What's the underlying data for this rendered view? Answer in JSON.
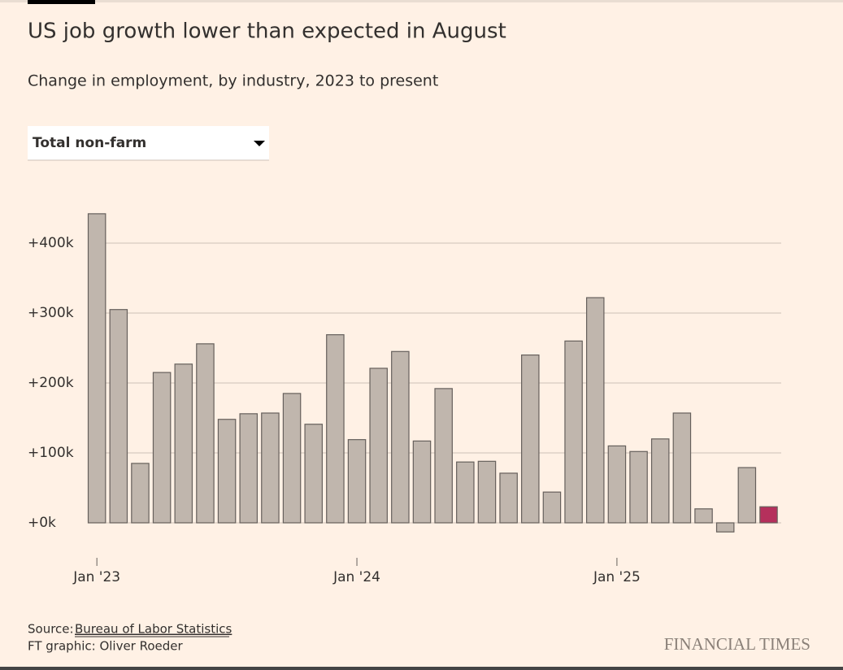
{
  "chart_data": {
    "type": "bar",
    "title": "US job growth lower than expected in August",
    "subtitle": "Change in employment, by industry, 2023 to present",
    "selector": "Total non-farm",
    "source_prefix": "Source:",
    "source": "Bureau of Labor Statistics",
    "credit": "FT graphic: Oliver Roeder",
    "brand": "FINANCIAL TIMES",
    "categories": [
      "Jan '23",
      null,
      null,
      null,
      null,
      null,
      null,
      null,
      null,
      null,
      null,
      null,
      "Jan '24",
      null,
      null,
      null,
      null,
      null,
      null,
      null,
      null,
      null,
      null,
      null,
      "Jan '25",
      null,
      null,
      null,
      null,
      null,
      null,
      null
    ],
    "values": [
      442,
      305,
      85,
      215,
      227,
      256,
      148,
      156,
      157,
      185,
      141,
      269,
      119,
      221,
      245,
      117,
      192,
      87,
      88,
      71,
      240,
      44,
      260,
      322,
      110,
      102,
      120,
      157,
      20,
      -13,
      79,
      23
    ],
    "colors": [
      "#c0b6ad",
      "#c0b6ad",
      "#c0b6ad",
      "#c0b6ad",
      "#c0b6ad",
      "#c0b6ad",
      "#c0b6ad",
      "#c0b6ad",
      "#c0b6ad",
      "#c0b6ad",
      "#c0b6ad",
      "#c0b6ad",
      "#c0b6ad",
      "#c0b6ad",
      "#c0b6ad",
      "#c0b6ad",
      "#c0b6ad",
      "#c0b6ad",
      "#c0b6ad",
      "#c0b6ad",
      "#c0b6ad",
      "#c0b6ad",
      "#c0b6ad",
      "#c0b6ad",
      "#c0b6ad",
      "#c0b6ad",
      "#c0b6ad",
      "#c0b6ad",
      "#c0b6ad",
      "#c0b6ad",
      "#c0b6ad",
      "#b5305c"
    ],
    "ylim": [
      -50,
      450
    ],
    "yticks": [
      {
        "value": 0,
        "label": "+0k"
      },
      {
        "value": 100,
        "label": "+100k"
      },
      {
        "value": 200,
        "label": "+200k"
      },
      {
        "value": 300,
        "label": "+300k"
      },
      {
        "value": 400,
        "label": "+400k"
      }
    ],
    "grid": true
  }
}
